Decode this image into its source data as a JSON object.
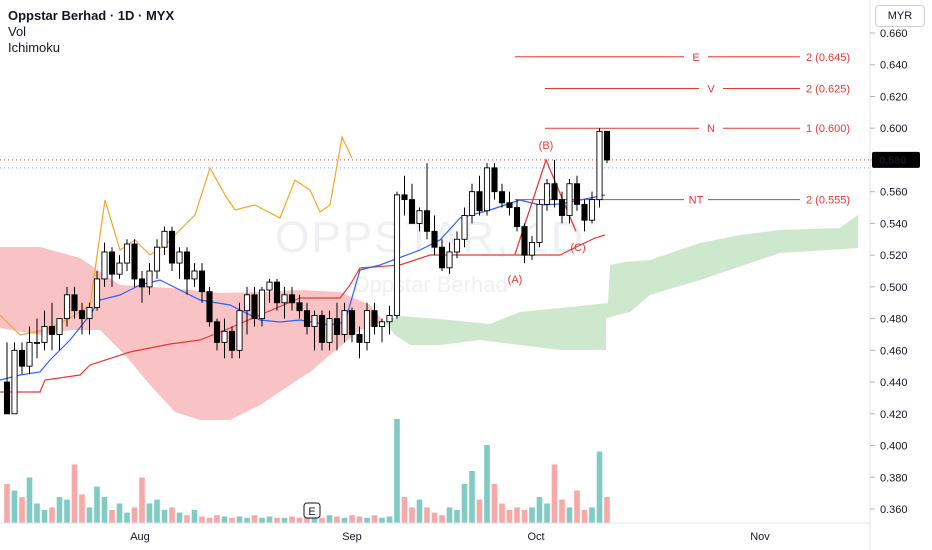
{
  "header": {
    "title": "Oppstar Berhad · 1D · MYX",
    "line2": "Vol",
    "line3": "Ichimoku"
  },
  "currency_button": "MYR",
  "watermark": {
    "ticker": "OPPSTAR",
    "name": "Oppstar Berhad",
    "timeframe": "1D"
  },
  "event_marker": "E",
  "colors": {
    "up_fill": "#ffffff",
    "candle_outline": "#000000",
    "down_fill": "#000000",
    "vol_up": "#80cbc4",
    "vol_down": "#f7a9a7",
    "cloud_bear": "#f8b9bb",
    "cloud_bull": "#c9e6c9",
    "tenkan": "#2962ff",
    "kijun": "#e53935",
    "chikou": "#f5a623",
    "annotation": "#e53935"
  },
  "chart_data": {
    "type": "candlestick",
    "y_axis": {
      "range": [
        0.35,
        0.665
      ],
      "ticks": [
        "0.660",
        "0.640",
        "0.620",
        "0.600",
        "0.580",
        "0.560",
        "0.540",
        "0.520",
        "0.500",
        "0.480",
        "0.460",
        "0.440",
        "0.420",
        "0.400",
        "0.380",
        "0.360"
      ],
      "last_price_label": "0.580"
    },
    "x_axis": {
      "labels": [
        "Aug",
        "Sep",
        "Oct",
        "Nov"
      ]
    },
    "candles": [
      [
        0.44,
        0.465,
        0.42,
        0.42
      ],
      [
        0.42,
        0.465,
        0.42,
        0.46
      ],
      [
        0.46,
        0.465,
        0.445,
        0.45
      ],
      [
        0.45,
        0.475,
        0.445,
        0.465
      ],
      [
        0.465,
        0.48,
        0.455,
        0.465
      ],
      [
        0.465,
        0.485,
        0.46,
        0.475
      ],
      [
        0.475,
        0.49,
        0.46,
        0.47
      ],
      [
        0.47,
        0.48,
        0.46,
        0.48
      ],
      [
        0.48,
        0.5,
        0.475,
        0.495
      ],
      [
        0.495,
        0.5,
        0.48,
        0.485
      ],
      [
        0.485,
        0.49,
        0.47,
        0.48
      ],
      [
        0.48,
        0.49,
        0.47,
        0.487
      ],
      [
        0.487,
        0.51,
        0.485,
        0.505
      ],
      [
        0.505,
        0.528,
        0.5,
        0.522
      ],
      [
        0.522,
        0.525,
        0.5,
        0.508
      ],
      [
        0.508,
        0.52,
        0.505,
        0.515
      ],
      [
        0.515,
        0.53,
        0.51,
        0.527
      ],
      [
        0.527,
        0.53,
        0.5,
        0.505
      ],
      [
        0.505,
        0.51,
        0.49,
        0.5
      ],
      [
        0.5,
        0.515,
        0.495,
        0.51
      ],
      [
        0.51,
        0.53,
        0.505,
        0.525
      ],
      [
        0.525,
        0.538,
        0.52,
        0.535
      ],
      [
        0.535,
        0.538,
        0.51,
        0.515
      ],
      [
        0.515,
        0.525,
        0.505,
        0.522
      ],
      [
        0.522,
        0.525,
        0.495,
        0.505
      ],
      [
        0.505,
        0.515,
        0.5,
        0.51
      ],
      [
        0.51,
        0.515,
        0.49,
        0.497
      ],
      [
        0.497,
        0.5,
        0.475,
        0.478
      ],
      [
        0.478,
        0.48,
        0.46,
        0.465
      ],
      [
        0.465,
        0.48,
        0.455,
        0.472
      ],
      [
        0.472,
        0.475,
        0.455,
        0.46
      ],
      [
        0.46,
        0.49,
        0.455,
        0.485
      ],
      [
        0.485,
        0.5,
        0.47,
        0.495
      ],
      [
        0.495,
        0.5,
        0.475,
        0.48
      ],
      [
        0.48,
        0.5,
        0.475,
        0.498
      ],
      [
        0.498,
        0.505,
        0.49,
        0.503
      ],
      [
        0.503,
        0.505,
        0.485,
        0.49
      ],
      [
        0.49,
        0.5,
        0.48,
        0.495
      ],
      [
        0.495,
        0.5,
        0.485,
        0.49
      ],
      [
        0.49,
        0.495,
        0.48,
        0.485
      ],
      [
        0.485,
        0.49,
        0.47,
        0.475
      ],
      [
        0.475,
        0.485,
        0.46,
        0.482
      ],
      [
        0.482,
        0.485,
        0.46,
        0.465
      ],
      [
        0.465,
        0.485,
        0.46,
        0.48
      ],
      [
        0.48,
        0.49,
        0.46,
        0.47
      ],
      [
        0.47,
        0.49,
        0.465,
        0.485
      ],
      [
        0.485,
        0.487,
        0.465,
        0.47
      ],
      [
        0.47,
        0.475,
        0.455,
        0.465
      ],
      [
        0.465,
        0.49,
        0.46,
        0.485
      ],
      [
        0.485,
        0.49,
        0.47,
        0.475
      ],
      [
        0.475,
        0.48,
        0.465,
        0.478
      ],
      [
        0.478,
        0.488,
        0.47,
        0.482
      ],
      [
        0.482,
        0.56,
        0.48,
        0.558
      ],
      [
        0.558,
        0.57,
        0.545,
        0.555
      ],
      [
        0.555,
        0.565,
        0.54,
        0.54
      ],
      [
        0.54,
        0.55,
        0.535,
        0.548
      ],
      [
        0.548,
        0.578,
        0.53,
        0.535
      ],
      [
        0.535,
        0.545,
        0.52,
        0.525
      ],
      [
        0.525,
        0.53,
        0.51,
        0.512
      ],
      [
        0.512,
        0.528,
        0.508,
        0.522
      ],
      [
        0.522,
        0.535,
        0.518,
        0.53
      ],
      [
        0.53,
        0.55,
        0.525,
        0.545
      ],
      [
        0.545,
        0.565,
        0.54,
        0.56
      ],
      [
        0.56,
        0.57,
        0.545,
        0.548
      ],
      [
        0.548,
        0.578,
        0.545,
        0.575
      ],
      [
        0.575,
        0.578,
        0.555,
        0.56
      ],
      [
        0.56,
        0.565,
        0.55,
        0.553
      ],
      [
        0.553,
        0.56,
        0.545,
        0.55
      ],
      [
        0.55,
        0.555,
        0.535,
        0.538
      ],
      [
        0.538,
        0.54,
        0.515,
        0.52
      ],
      [
        0.52,
        0.532,
        0.517,
        0.528
      ],
      [
        0.528,
        0.555,
        0.525,
        0.552
      ],
      [
        0.552,
        0.568,
        0.548,
        0.565
      ],
      [
        0.565,
        0.58,
        0.55,
        0.555
      ],
      [
        0.555,
        0.56,
        0.54,
        0.545
      ],
      [
        0.545,
        0.568,
        0.54,
        0.565
      ],
      [
        0.565,
        0.57,
        0.548,
        0.552
      ],
      [
        0.552,
        0.555,
        0.535,
        0.542
      ],
      [
        0.542,
        0.56,
        0.54,
        0.555
      ],
      [
        0.555,
        0.6,
        0.55,
        0.598
      ],
      [
        0.598,
        0.598,
        0.578,
        0.58
      ]
    ],
    "volume_heights": [
      0.3,
      0.25,
      0.2,
      0.35,
      0.15,
      0.1,
      0.12,
      0.2,
      0.18,
      0.45,
      0.22,
      0.12,
      0.28,
      0.2,
      0.1,
      0.15,
      0.08,
      0.12,
      0.35,
      0.15,
      0.18,
      0.1,
      0.12,
      0.08,
      0.06,
      0.1,
      0.05,
      0.04,
      0.06,
      0.05,
      0.04,
      0.05,
      0.04,
      0.06,
      0.04,
      0.05,
      0.04,
      0.04,
      0.05,
      0.04,
      0.04,
      0.05,
      0.04,
      0.06,
      0.05,
      0.04,
      0.06,
      0.05,
      0.04,
      0.06,
      0.04,
      0.05,
      0.8,
      0.2,
      0.12,
      0.18,
      0.12,
      0.08,
      0.06,
      0.12,
      0.1,
      0.3,
      0.4,
      0.18,
      0.6,
      0.3,
      0.15,
      0.1,
      0.12,
      0.1,
      0.12,
      0.2,
      0.15,
      0.45,
      0.18,
      0.12,
      0.25,
      0.1,
      0.12,
      0.55,
      0.2
    ],
    "annotations": [
      {
        "label": "E",
        "value_label": "2 (0.645)",
        "value": 0.645
      },
      {
        "label": "V",
        "value_label": "2 (0.625)",
        "value": 0.625
      },
      {
        "label": "N",
        "value_label": "1 (0.600)",
        "value": 0.6
      },
      {
        "label": "NT",
        "value_label": "2 (0.555)",
        "value": 0.555
      }
    ],
    "wave_labels": [
      {
        "label": "(A)",
        "value": 0.5205
      },
      {
        "label": "(B)",
        "value": 0.58
      },
      {
        "label": "(C)",
        "value": 0.535
      }
    ]
  }
}
